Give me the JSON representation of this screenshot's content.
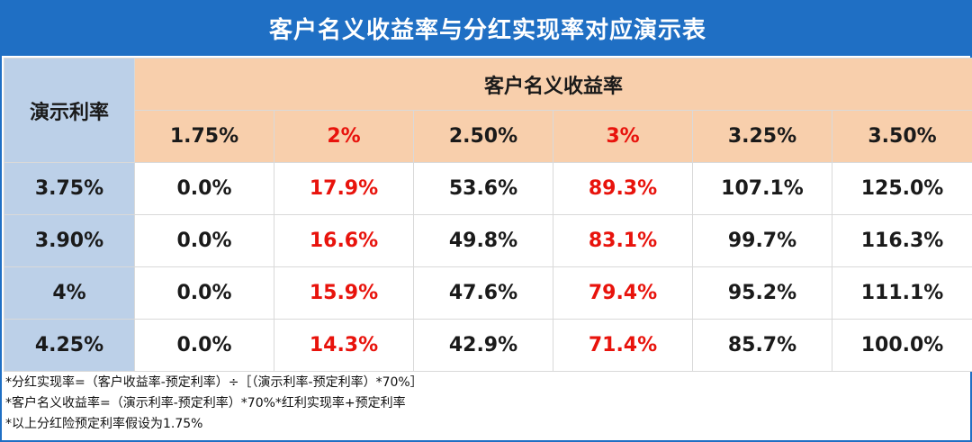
{
  "title": "客户名义收益率与分红实现率对应演示表",
  "table": {
    "row_header": "演示利率",
    "group_header": "客户名义收益率",
    "columns": [
      {
        "label": "1.75%",
        "highlight": false
      },
      {
        "label": "2%",
        "highlight": true
      },
      {
        "label": "2.50%",
        "highlight": false
      },
      {
        "label": "3%",
        "highlight": true
      },
      {
        "label": "3.25%",
        "highlight": false
      },
      {
        "label": "3.50%",
        "highlight": false
      }
    ],
    "rows": [
      {
        "rate": "3.75%",
        "values": [
          "0.0%",
          "17.9%",
          "53.6%",
          "89.3%",
          "107.1%",
          "125.0%"
        ]
      },
      {
        "rate": "3.90%",
        "values": [
          "0.0%",
          "16.6%",
          "49.8%",
          "83.1%",
          "99.7%",
          "116.3%"
        ]
      },
      {
        "rate": "4%",
        "values": [
          "0.0%",
          "15.9%",
          "47.6%",
          "79.4%",
          "95.2%",
          "111.1%"
        ]
      },
      {
        "rate": "4.25%",
        "values": [
          "0.0%",
          "14.3%",
          "42.9%",
          "71.4%",
          "85.7%",
          "100.0%"
        ]
      }
    ]
  },
  "notes": [
    "*分红实现率=（客户收益率-预定利率）÷［（演示利率-预定利率）*70%］",
    "*客户名义收益率=（演示利率-预定利率）*70%*红利实现率+预定利率",
    "*以上分红险预定利率假设为1.75%"
  ],
  "colors": {
    "title_bg": "#1f6fc4",
    "header_bg": "#f8cfac",
    "rowhead_bg": "#bcd0e8",
    "highlight_text": "#e8130c"
  }
}
